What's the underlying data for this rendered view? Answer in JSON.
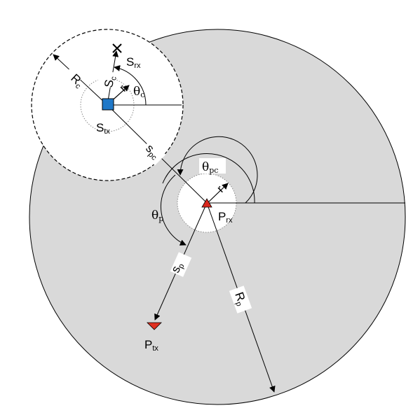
{
  "diagram": {
    "colors": {
      "primary_area": "#d9d9d9",
      "cell_area": "#ffffff",
      "primary_marker": "#d9261c",
      "secondary_marker": "#1f78c8",
      "line": "#000000"
    },
    "labels": {
      "R_c": {
        "main": "R",
        "sub": "c"
      },
      "S_c": {
        "main": "S",
        "sub": "c"
      },
      "theta_c": {
        "main": "θ",
        "sub": "c"
      },
      "S_rx": {
        "main": "S",
        "sub": "rx"
      },
      "S_tx": {
        "main": "S",
        "sub": "tx"
      },
      "s_pc": {
        "main": "s",
        "sub": "pc"
      },
      "theta_pc": {
        "main": "θ",
        "sub": "pc"
      },
      "theta_p": {
        "main": "θ",
        "sub": "p"
      },
      "P_rx": {
        "main": "P",
        "sub": "rx"
      },
      "s_p": {
        "main": "s",
        "sub": "p"
      },
      "R_p": {
        "main": "R",
        "sub": "p"
      },
      "P_tx": {
        "main": "P",
        "sub": "tx"
      },
      "r_primary": {
        "main": "r"
      },
      "r_secondary": {
        "main": "r"
      }
    },
    "icons": [
      "cross-icon",
      "square-icon",
      "triangle-icon"
    ]
  }
}
